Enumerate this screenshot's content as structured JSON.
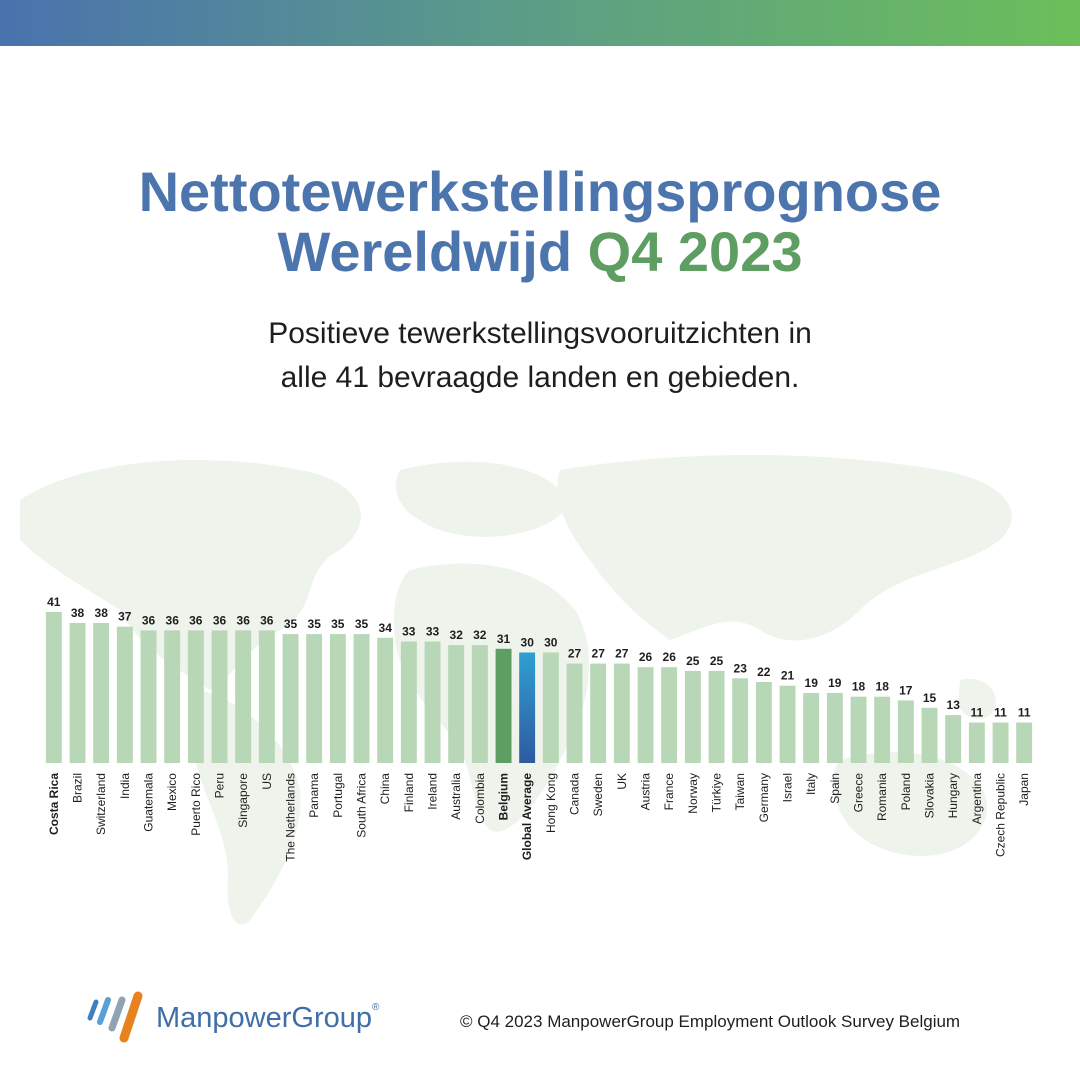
{
  "header": {
    "title_line1": "Nettotewerkstellingsprognose",
    "title_line2_main": "Wereldwijd",
    "title_line2_accent": "Q4 2023",
    "subtitle_line1": "Positieve tewerkstellingsvooruitzichten in",
    "subtitle_line2": "alle 41 bevraagde landen en gebieden."
  },
  "colors": {
    "title": "#4c74ad",
    "accent": "#5f9e62",
    "bar_default": "#b8d7b6",
    "bar_highlight": "#5f9e62",
    "bar_global_top": "#2f9fd3",
    "bar_global_bottom": "#2f5aa0"
  },
  "chart_data": {
    "type": "bar",
    "categories": [
      "Costa Rica",
      "Brazil",
      "Switzerland",
      "India",
      "Guatemala",
      "Mexico",
      "Puerto Rico",
      "Peru",
      "Singapore",
      "US",
      "The Netherlands",
      "Panama",
      "Portugal",
      "South Africa",
      "China",
      "Finland",
      "Ireland",
      "Australia",
      "Colombia",
      "Belgium",
      "Global Average",
      "Hong Kong",
      "Canada",
      "Sweden",
      "UK",
      "Austria",
      "France",
      "Norway",
      "Türkiye",
      "Taiwan",
      "Germany",
      "Israel",
      "Italy",
      "Spain",
      "Greece",
      "Romania",
      "Poland",
      "Slovakia",
      "Hungary",
      "Argentina",
      "Czech Republic",
      "Japan"
    ],
    "values": [
      41,
      38,
      38,
      37,
      36,
      36,
      36,
      36,
      36,
      36,
      35,
      35,
      35,
      35,
      34,
      33,
      33,
      32,
      32,
      31,
      30,
      30,
      27,
      27,
      27,
      26,
      26,
      25,
      25,
      23,
      22,
      21,
      19,
      19,
      18,
      18,
      17,
      15,
      13,
      11,
      11,
      11
    ],
    "bold_labels": [
      "Costa Rica",
      "Belgium",
      "Global Average"
    ],
    "highlight": "Belgium",
    "average": "Global Average",
    "ylim": [
      0,
      41
    ]
  },
  "footer": {
    "logo_text": "ManpowerGroup",
    "logo_mark": "®",
    "copyright": "© Q4 2023 ManpowerGroup Employment Outlook Survey Belgium"
  }
}
